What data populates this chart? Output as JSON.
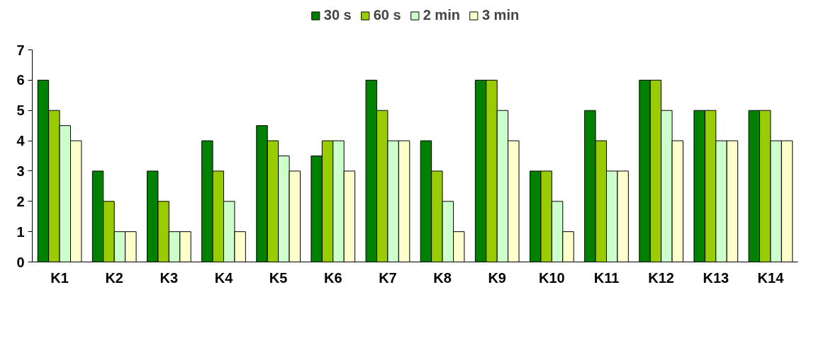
{
  "chart_data": {
    "type": "bar",
    "categories": [
      "K1",
      "K2",
      "K3",
      "K4",
      "K5",
      "K6",
      "K7",
      "K8",
      "K9",
      "K10",
      "K11",
      "K12",
      "K13",
      "K14"
    ],
    "series": [
      {
        "name": "30 s",
        "color": "#008000",
        "values": [
          6,
          3,
          3,
          4,
          4.5,
          3.5,
          6,
          4,
          6,
          3,
          5,
          6,
          5,
          5
        ]
      },
      {
        "name": "60 s",
        "color": "#99cc00",
        "values": [
          5,
          2,
          2,
          3,
          4,
          4,
          5,
          3,
          6,
          3,
          4,
          6,
          5,
          5
        ]
      },
      {
        "name": "2 min",
        "color": "#ccffcc",
        "values": [
          4.5,
          1,
          1,
          2,
          3.5,
          4,
          4,
          2,
          5,
          2,
          3,
          5,
          4,
          4
        ]
      },
      {
        "name": "3 min",
        "color": "#ffffcc",
        "values": [
          4,
          1,
          1,
          1,
          3,
          3,
          4,
          1,
          4,
          1,
          3,
          4,
          4,
          4
        ]
      }
    ],
    "ylim": [
      0,
      7
    ],
    "yticks": [
      0,
      1,
      2,
      3,
      4,
      5,
      6,
      7
    ],
    "grid": false,
    "legend": "top"
  }
}
